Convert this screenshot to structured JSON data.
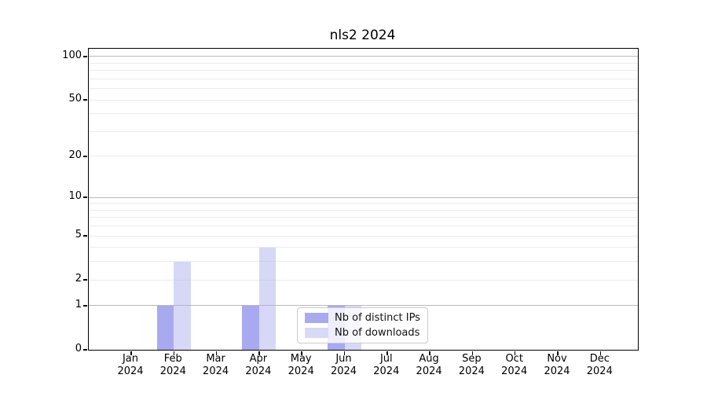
{
  "title": "nls2 2024",
  "colors": {
    "series_ips": "#a9a9ef",
    "series_downloads": "rgba(168,168,238,0.46)",
    "legend_downloads_swatch": "#d8d8f7",
    "grid_major": "#b9b9b9",
    "grid_minor": "#ececec",
    "spine": "#000000",
    "text": "#000000"
  },
  "chart_data": {
    "type": "bar",
    "title": "nls2 2024",
    "x_labels": [
      {
        "line1": "Jan",
        "line2": "2024"
      },
      {
        "line1": "Feb",
        "line2": "2024"
      },
      {
        "line1": "Mar",
        "line2": "2024"
      },
      {
        "line1": "Apr",
        "line2": "2024"
      },
      {
        "line1": "May",
        "line2": "2024"
      },
      {
        "line1": "Jun",
        "line2": "2024"
      },
      {
        "line1": "Jul",
        "line2": "2024"
      },
      {
        "line1": "Aug",
        "line2": "2024"
      },
      {
        "line1": "Sep",
        "line2": "2024"
      },
      {
        "line1": "Oct",
        "line2": "2024"
      },
      {
        "line1": "Nov",
        "line2": "2024"
      },
      {
        "line1": "Dec",
        "line2": "2024"
      }
    ],
    "series": [
      {
        "name": "Nb of distinct IPs",
        "values": [
          0,
          1,
          0,
          1,
          0,
          1,
          0,
          0,
          0,
          0,
          0,
          0
        ]
      },
      {
        "name": "Nb of downloads",
        "values": [
          0,
          3,
          0,
          4,
          0,
          1,
          0,
          0,
          0,
          0,
          0,
          0
        ]
      }
    ],
    "y_scale": "log10(1+x)",
    "y_tick_values": [
      0,
      1,
      2,
      5,
      10,
      20,
      50,
      100
    ],
    "y_major_gridlines": [
      1,
      10,
      100
    ],
    "y_minor_gridlines": [
      2,
      3,
      4,
      5,
      6,
      7,
      8,
      9,
      20,
      30,
      40,
      50,
      60,
      70,
      80,
      90
    ],
    "ylim": [
      0,
      113
    ],
    "xlabel": "",
    "ylabel": "",
    "grid": true,
    "legend_position": "lower-center"
  }
}
